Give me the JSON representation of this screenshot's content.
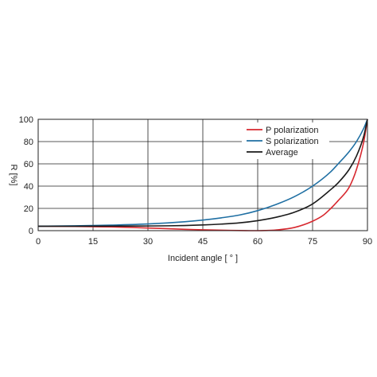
{
  "chart_data": {
    "type": "line",
    "xlabel": "Incident angle [ ° ]",
    "ylabel": "R [%]",
    "xlim": [
      0,
      90
    ],
    "ylim": [
      0,
      100
    ],
    "xticks": [
      0,
      15,
      30,
      45,
      60,
      75,
      90
    ],
    "yticks": [
      0,
      20,
      40,
      60,
      80,
      100
    ],
    "grid": true,
    "legend_position": "top-right",
    "series": [
      {
        "name": "P polarization",
        "color": "#d7282f",
        "x": [
          0,
          10,
          20,
          30,
          40,
          45,
          50,
          55,
          58,
          60,
          62,
          65,
          70,
          75,
          78,
          80,
          82,
          85,
          87,
          89,
          90
        ],
        "y": [
          4.0,
          3.8,
          3.3,
          2.4,
          1.2,
          0.8,
          0.4,
          0.1,
          0.0,
          0.0,
          0.1,
          0.6,
          2.8,
          8.5,
          14,
          20,
          27,
          39,
          55,
          80,
          100
        ]
      },
      {
        "name": "S polarization",
        "color": "#1f6fa3",
        "x": [
          0,
          10,
          20,
          30,
          40,
          45,
          50,
          55,
          60,
          65,
          70,
          75,
          80,
          82,
          85,
          87,
          89,
          90
        ],
        "y": [
          4.0,
          4.3,
          5.0,
          6.0,
          8.0,
          9.5,
          11.5,
          14.0,
          18,
          23.5,
          30.5,
          40,
          53,
          60,
          71,
          80,
          92,
          100
        ]
      },
      {
        "name": "Average",
        "color": "#1a1a1a",
        "x": [
          0,
          10,
          20,
          30,
          40,
          45,
          50,
          55,
          60,
          65,
          70,
          75,
          80,
          82,
          85,
          87,
          89,
          90
        ],
        "y": [
          4.0,
          4.0,
          4.1,
          4.2,
          4.6,
          5.1,
          5.9,
          7.0,
          9.0,
          12.0,
          16.5,
          24,
          37,
          43,
          55,
          67,
          85,
          100
        ]
      }
    ]
  }
}
